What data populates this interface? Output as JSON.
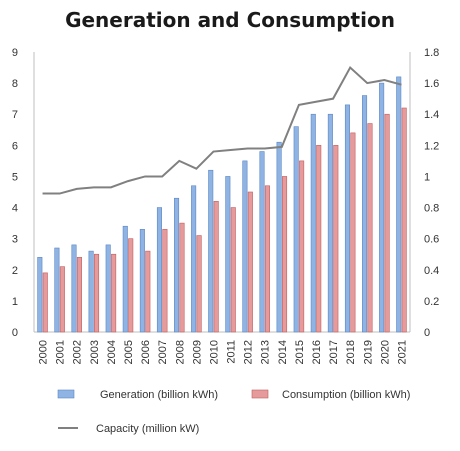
{
  "chart_data": {
    "type": "bar",
    "title": "Generation and Consumption",
    "categories": [
      "2000",
      "2001",
      "2002",
      "2003",
      "2004",
      "2005",
      "2006",
      "2007",
      "2008",
      "2009",
      "2010",
      "2011",
      "2012",
      "2013",
      "2014",
      "2015",
      "2016",
      "2017",
      "2018",
      "2019",
      "2020",
      "2021"
    ],
    "series": [
      {
        "name": "Generation (billion kWh)",
        "type": "bar",
        "axis": "left",
        "color": "#8fb4e3",
        "values": [
          2.4,
          2.7,
          2.8,
          2.6,
          2.8,
          3.4,
          3.3,
          4.0,
          4.3,
          4.7,
          5.2,
          5.0,
          5.5,
          5.8,
          6.1,
          6.6,
          7.0,
          7.0,
          7.3,
          7.6,
          8.0,
          8.2
        ]
      },
      {
        "name": "Consumption (billion kWh)",
        "type": "bar",
        "axis": "left",
        "color": "#e59b9b",
        "values": [
          1.9,
          2.1,
          2.4,
          2.5,
          2.5,
          3.0,
          2.6,
          3.3,
          3.5,
          3.1,
          4.2,
          4.0,
          4.5,
          4.7,
          5.0,
          5.5,
          6.0,
          6.0,
          6.4,
          6.7,
          7.0,
          7.2
        ]
      },
      {
        "name": "Capacity (million kW)",
        "type": "line",
        "axis": "right",
        "color": "#808080",
        "values": [
          0.89,
          0.89,
          0.92,
          0.93,
          0.93,
          0.97,
          1.0,
          1.0,
          1.1,
          1.05,
          1.16,
          1.17,
          1.18,
          1.18,
          1.19,
          1.46,
          1.48,
          1.5,
          1.7,
          1.6,
          1.62,
          1.59
        ]
      }
    ],
    "y_left": {
      "min": 0,
      "max": 9,
      "ticks": [
        "0",
        "1",
        "2",
        "3",
        "4",
        "5",
        "6",
        "7",
        "8",
        "9"
      ]
    },
    "y_right": {
      "min": 0,
      "max": 1.8,
      "ticks": [
        "0",
        "0.2",
        "0.4",
        "0.6",
        "0.8",
        "1",
        "1.2",
        "1.4",
        "1.6",
        "1.8"
      ]
    },
    "grid": false,
    "legend_position": "bottom"
  }
}
